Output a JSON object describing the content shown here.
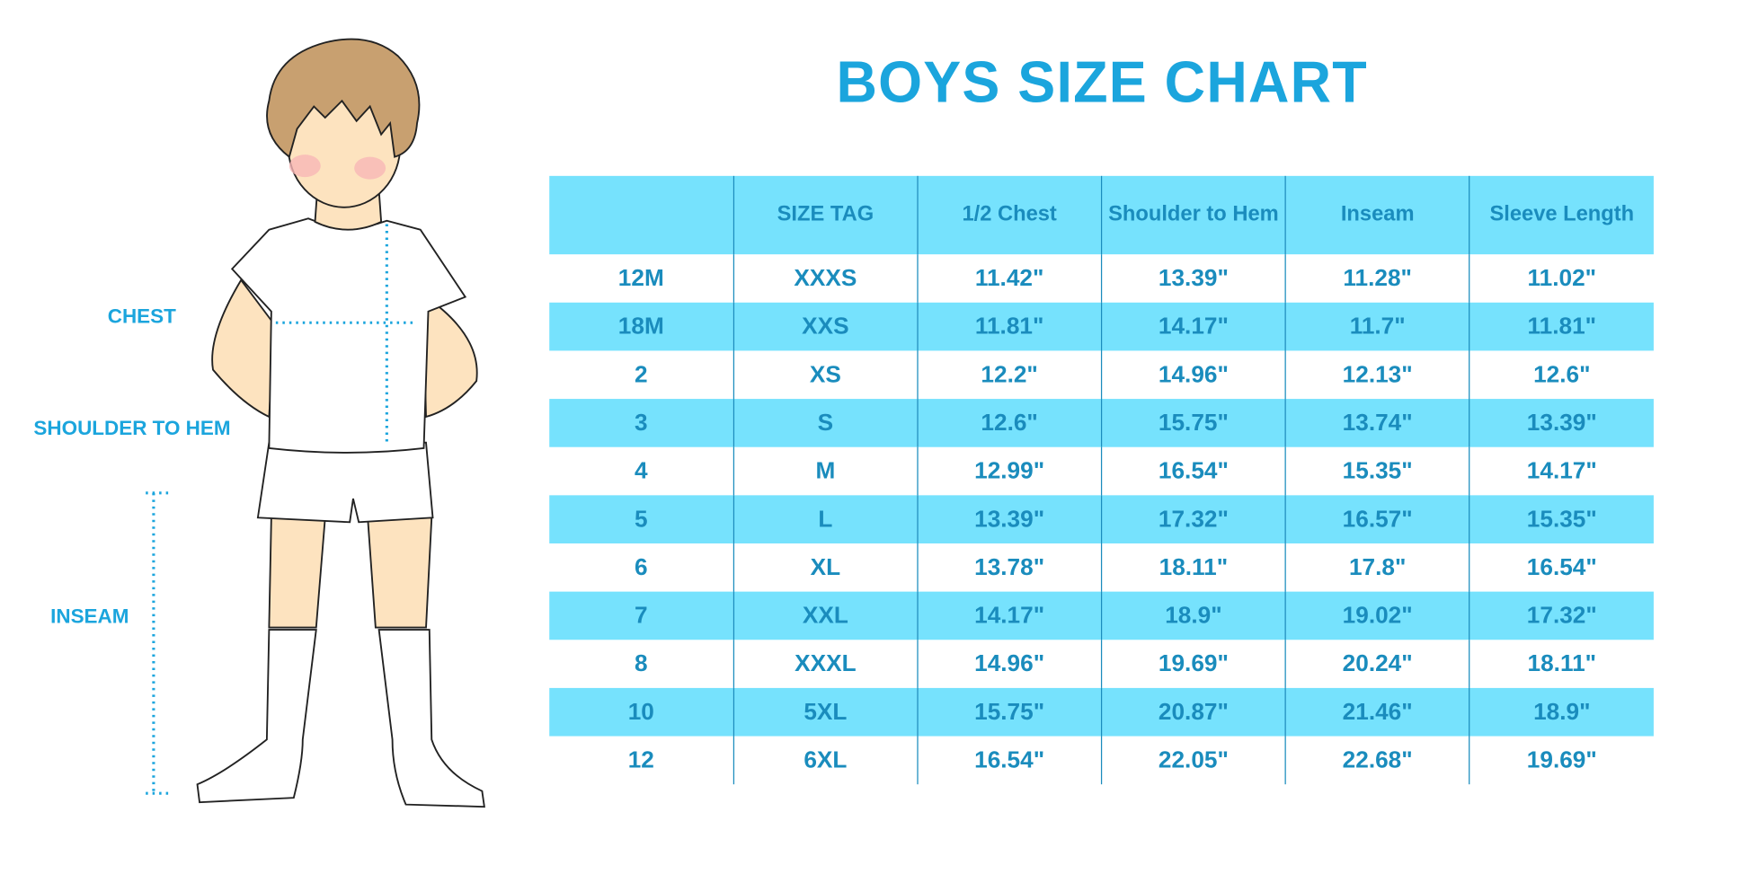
{
  "title": "BOYS SIZE CHART",
  "figure_labels": {
    "chest": "CHEST",
    "shoulder_to_hem": "SHOULDER TO HEM",
    "inseam": "INSEAM"
  },
  "colors": {
    "header_band": "#76E2FD",
    "text": "#1A8CBD",
    "title": "#1BA5DD"
  },
  "table": {
    "headers": [
      "",
      "SIZE TAG",
      "1/2 Chest",
      "Shoulder to Hem",
      "Inseam",
      "Sleeve Length"
    ],
    "rows": [
      [
        "12M",
        "XXXS",
        "11.42\"",
        "13.39\"",
        "11.28\"",
        "11.02\""
      ],
      [
        "18M",
        "XXS",
        "11.81\"",
        "14.17\"",
        "11.7\"",
        "11.81\""
      ],
      [
        "2",
        "XS",
        "12.2\"",
        "14.96\"",
        "12.13\"",
        "12.6\""
      ],
      [
        "3",
        "S",
        "12.6\"",
        "15.75\"",
        "13.74\"",
        "13.39\""
      ],
      [
        "4",
        "M",
        "12.99\"",
        "16.54\"",
        "15.35\"",
        "14.17\""
      ],
      [
        "5",
        "L",
        "13.39\"",
        "17.32\"",
        "16.57\"",
        "15.35\""
      ],
      [
        "6",
        "XL",
        "13.78\"",
        "18.11\"",
        "17.8\"",
        "16.54\""
      ],
      [
        "7",
        "XXL",
        "14.17\"",
        "18.9\"",
        "19.02\"",
        "17.32\""
      ],
      [
        "8",
        "XXXL",
        "14.96\"",
        "19.69\"",
        "20.24\"",
        "18.11\""
      ],
      [
        "10",
        "5XL",
        "15.75\"",
        "20.87\"",
        "21.46\"",
        "18.9\""
      ],
      [
        "12",
        "6XL",
        "16.54\"",
        "22.05\"",
        "22.68\"",
        "19.69\""
      ]
    ]
  }
}
